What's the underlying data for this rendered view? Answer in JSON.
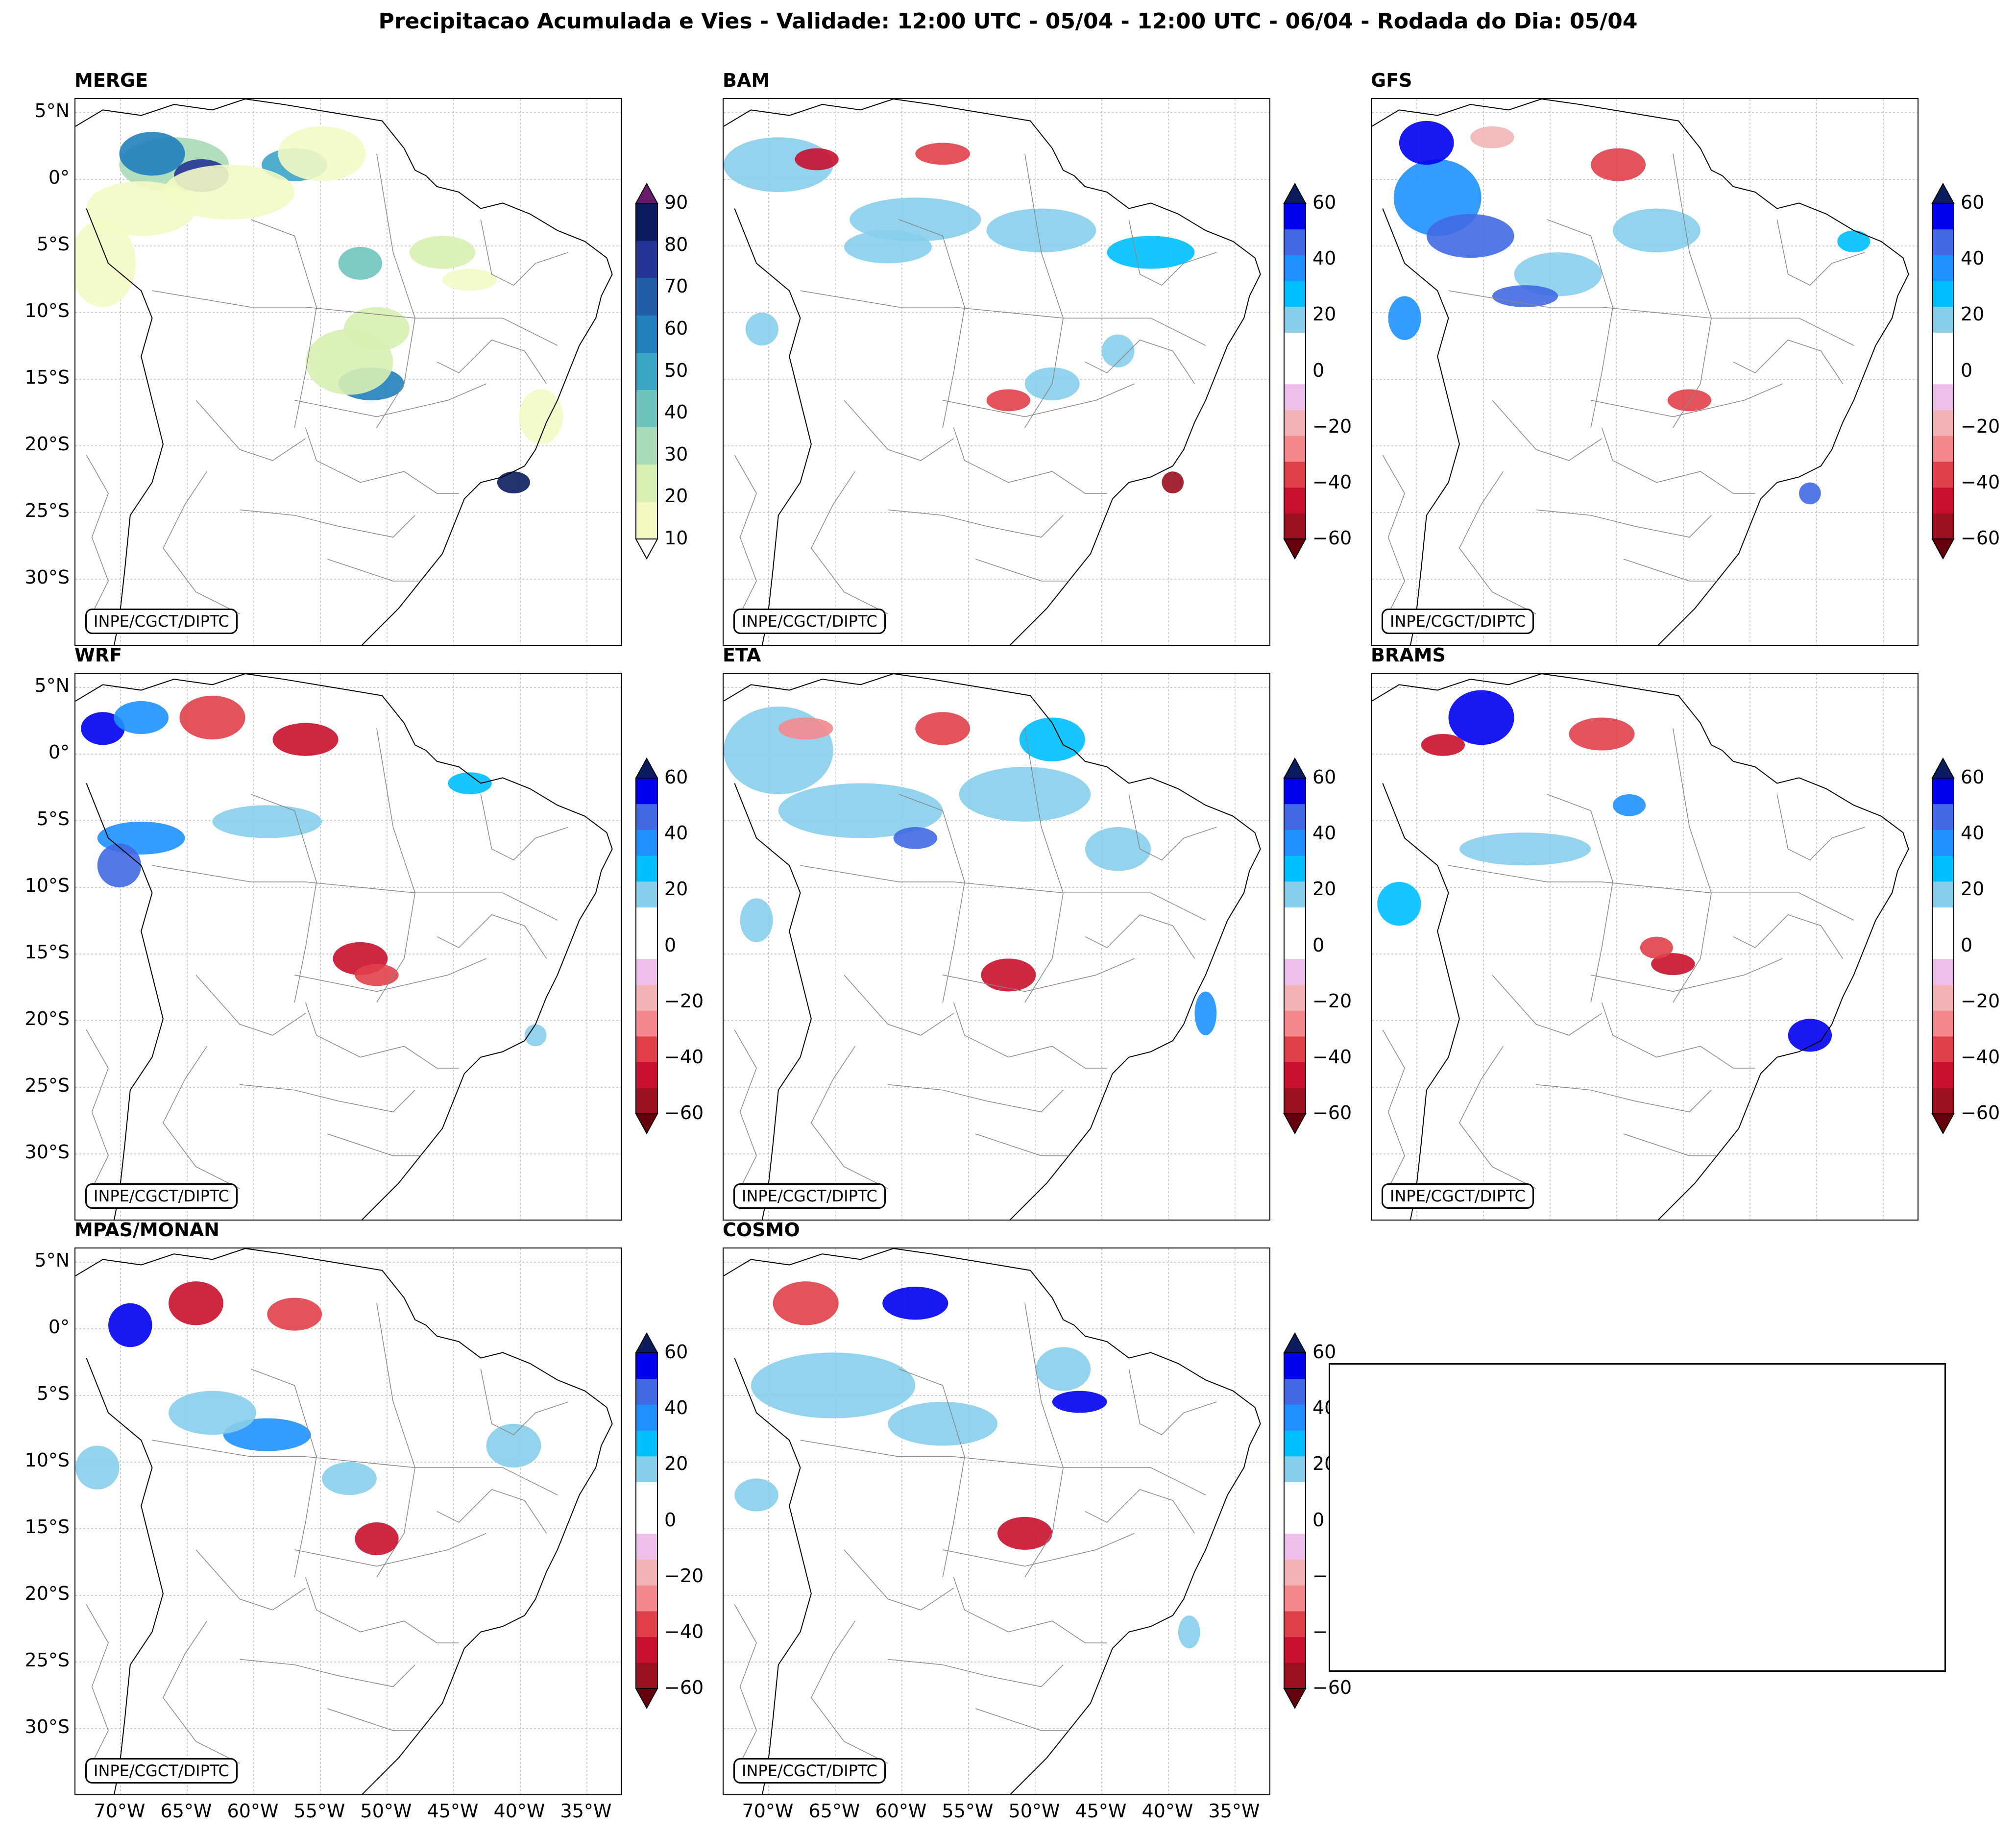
{
  "title": "Precipitacao Acumulada e Vies - Validade: 12:00 UTC - 05/04 - 12:00 UTC - 06/04 - Rodada do Dia: 05/04",
  "credit": "INPE/CGCT/DIPTC",
  "lat_ticks": [
    "5°N",
    "0°",
    "5°S",
    "10°S",
    "15°S",
    "20°S",
    "25°S",
    "30°S"
  ],
  "lon_ticks": [
    "70°W",
    "65°W",
    "60°W",
    "55°W",
    "50°W",
    "45°W",
    "40°W",
    "35°W"
  ],
  "panels": [
    {
      "name": "MERGE",
      "kind": "precip"
    },
    {
      "name": "BAM",
      "kind": "bias"
    },
    {
      "name": "GFS",
      "kind": "bias"
    },
    {
      "name": "WRF",
      "kind": "bias"
    },
    {
      "name": "ETA",
      "kind": "bias"
    },
    {
      "name": "BRAMS",
      "kind": "bias"
    },
    {
      "name": "MPAS/MONAN",
      "kind": "bias"
    },
    {
      "name": "COSMO",
      "kind": "bias"
    }
  ],
  "precip_colorbar": {
    "ticks": [
      "90",
      "80",
      "70",
      "60",
      "50",
      "40",
      "30",
      "20",
      "10"
    ],
    "colors": [
      "#f4f9c4",
      "#d8efb3",
      "#a9dcb6",
      "#6ec4bd",
      "#3ba5c6",
      "#2180bb",
      "#225ea8",
      "#253494",
      "#0b1d5e"
    ],
    "under_color": "#ffffff",
    "over_color": "#6a1b6e"
  },
  "bias_colorbar": {
    "ticks": [
      "60",
      "40",
      "20",
      "0",
      "−20",
      "−40",
      "−60"
    ],
    "colors": [
      "#99101f",
      "#c8102e",
      "#e0404a",
      "#f4888d",
      "#f2b4b4",
      "#eebfe8",
      "#ffffff",
      "#ffffff",
      "#87ceeb",
      "#00bfff",
      "#1e90ff",
      "#4169e1",
      "#0000ee"
    ],
    "under_color": "#67000d",
    "over_color": "#0b1d5e"
  }
}
